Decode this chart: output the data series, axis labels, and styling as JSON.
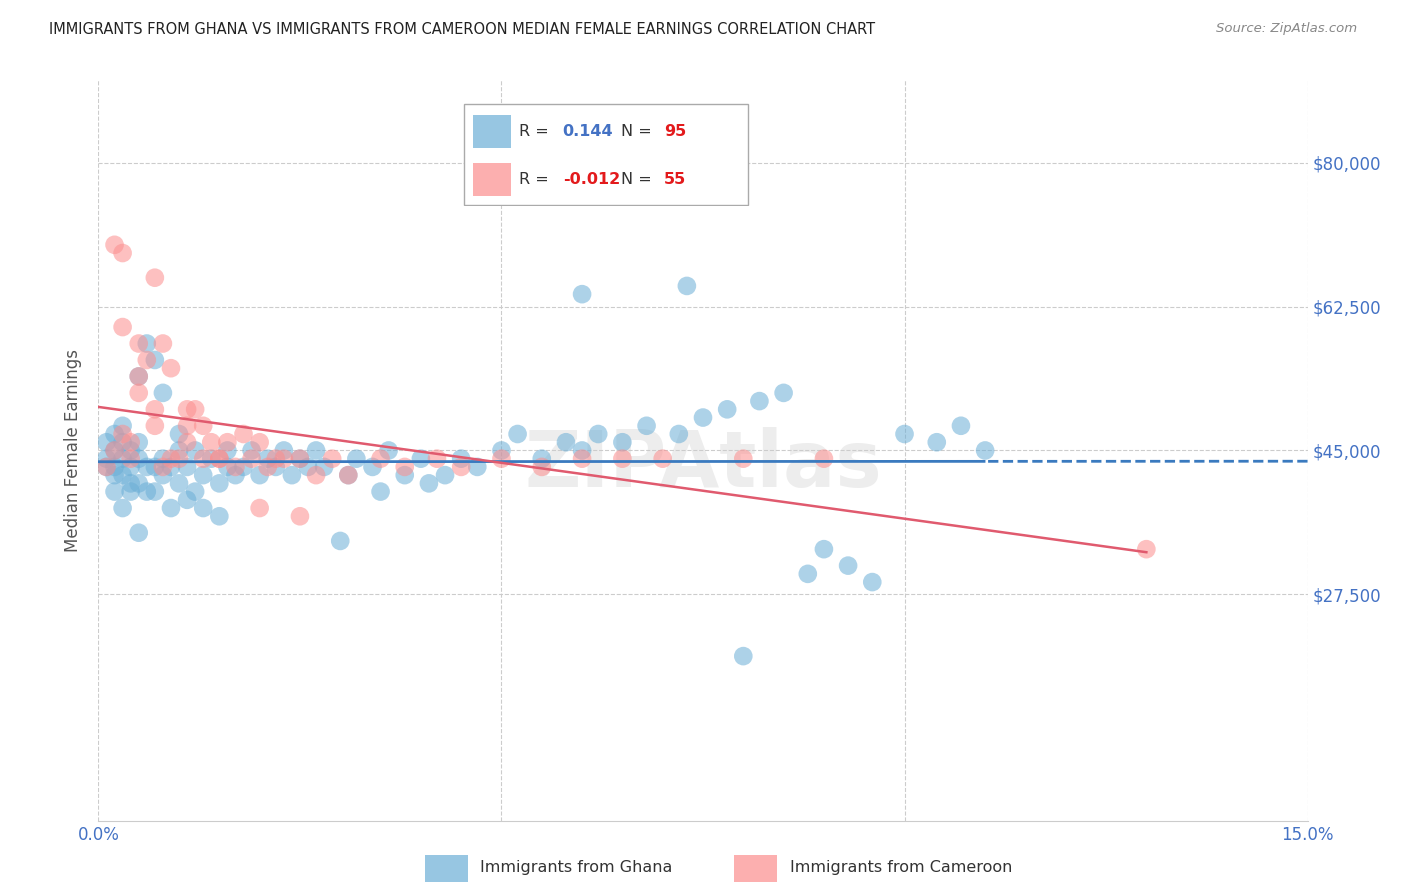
{
  "title": "IMMIGRANTS FROM GHANA VS IMMIGRANTS FROM CAMEROON MEDIAN FEMALE EARNINGS CORRELATION CHART",
  "source": "Source: ZipAtlas.com",
  "ylabel": "Median Female Earnings",
  "xlim": [
    0.0,
    0.15
  ],
  "ylim": [
    0,
    90000
  ],
  "yticks": [
    0,
    27500,
    45000,
    62500,
    80000
  ],
  "ytick_labels": [
    "",
    "$27,500",
    "$45,000",
    "$62,500",
    "$80,000"
  ],
  "xticks": [
    0.0,
    0.05,
    0.1,
    0.15
  ],
  "xtick_labels": [
    "0.0%",
    "",
    "",
    "15.0%"
  ],
  "ghana_R": 0.144,
  "ghana_N": 95,
  "cameroon_R": -0.012,
  "cameroon_N": 55,
  "ghana_color": "#6baed6",
  "cameroon_color": "#fc8d8d",
  "trend_ghana_color": "#3a7abf",
  "trend_cameroon_color": "#e05a6e",
  "background_color": "#ffffff",
  "grid_color": "#cccccc",
  "tick_label_color": "#4472c4",
  "watermark_text": "ZIPAtlas",
  "ghana_x": [
    0.001,
    0.001,
    0.001,
    0.002,
    0.002,
    0.002,
    0.002,
    0.002,
    0.003,
    0.003,
    0.003,
    0.003,
    0.003,
    0.004,
    0.004,
    0.004,
    0.004,
    0.005,
    0.005,
    0.005,
    0.005,
    0.005,
    0.006,
    0.006,
    0.006,
    0.007,
    0.007,
    0.007,
    0.008,
    0.008,
    0.008,
    0.009,
    0.009,
    0.01,
    0.01,
    0.01,
    0.011,
    0.011,
    0.012,
    0.012,
    0.013,
    0.013,
    0.014,
    0.015,
    0.015,
    0.016,
    0.016,
    0.017,
    0.018,
    0.019,
    0.02,
    0.021,
    0.022,
    0.023,
    0.024,
    0.025,
    0.026,
    0.027,
    0.028,
    0.03,
    0.031,
    0.032,
    0.034,
    0.035,
    0.036,
    0.038,
    0.04,
    0.041,
    0.043,
    0.045,
    0.047,
    0.05,
    0.052,
    0.055,
    0.058,
    0.06,
    0.062,
    0.065,
    0.068,
    0.072,
    0.075,
    0.078,
    0.082,
    0.085,
    0.088,
    0.09,
    0.093,
    0.096,
    0.1,
    0.104,
    0.107,
    0.11,
    0.06,
    0.073,
    0.08
  ],
  "ghana_y": [
    44000,
    43000,
    46000,
    40000,
    43000,
    45000,
    47000,
    42000,
    38000,
    42000,
    44000,
    46000,
    48000,
    40000,
    43000,
    45000,
    41000,
    35000,
    41000,
    44000,
    46000,
    54000,
    40000,
    43000,
    58000,
    40000,
    43000,
    56000,
    42000,
    44000,
    52000,
    38000,
    43000,
    41000,
    45000,
    47000,
    39000,
    43000,
    40000,
    45000,
    38000,
    42000,
    44000,
    37000,
    41000,
    43000,
    45000,
    42000,
    43000,
    45000,
    42000,
    44000,
    43000,
    45000,
    42000,
    44000,
    43000,
    45000,
    43000,
    34000,
    42000,
    44000,
    43000,
    40000,
    45000,
    42000,
    44000,
    41000,
    42000,
    44000,
    43000,
    45000,
    47000,
    44000,
    46000,
    45000,
    47000,
    46000,
    48000,
    47000,
    49000,
    50000,
    51000,
    52000,
    30000,
    33000,
    31000,
    29000,
    47000,
    46000,
    48000,
    45000,
    64000,
    65000,
    20000
  ],
  "cameroon_x": [
    0.001,
    0.002,
    0.002,
    0.003,
    0.003,
    0.004,
    0.004,
    0.005,
    0.005,
    0.006,
    0.007,
    0.007,
    0.008,
    0.008,
    0.009,
    0.01,
    0.011,
    0.011,
    0.012,
    0.013,
    0.014,
    0.015,
    0.016,
    0.017,
    0.018,
    0.019,
    0.02,
    0.021,
    0.022,
    0.023,
    0.025,
    0.027,
    0.029,
    0.031,
    0.035,
    0.038,
    0.042,
    0.045,
    0.05,
    0.055,
    0.06,
    0.065,
    0.07,
    0.08,
    0.09,
    0.003,
    0.005,
    0.007,
    0.009,
    0.011,
    0.013,
    0.015,
    0.02,
    0.025,
    0.13
  ],
  "cameroon_y": [
    43000,
    45000,
    70000,
    47000,
    69000,
    44000,
    46000,
    52000,
    54000,
    56000,
    48000,
    66000,
    43000,
    58000,
    55000,
    44000,
    46000,
    48000,
    50000,
    44000,
    46000,
    44000,
    46000,
    43000,
    47000,
    44000,
    46000,
    43000,
    44000,
    44000,
    44000,
    42000,
    44000,
    42000,
    44000,
    43000,
    44000,
    43000,
    44000,
    43000,
    44000,
    44000,
    44000,
    44000,
    44000,
    60000,
    58000,
    50000,
    44000,
    50000,
    48000,
    44000,
    38000,
    37000,
    33000
  ]
}
